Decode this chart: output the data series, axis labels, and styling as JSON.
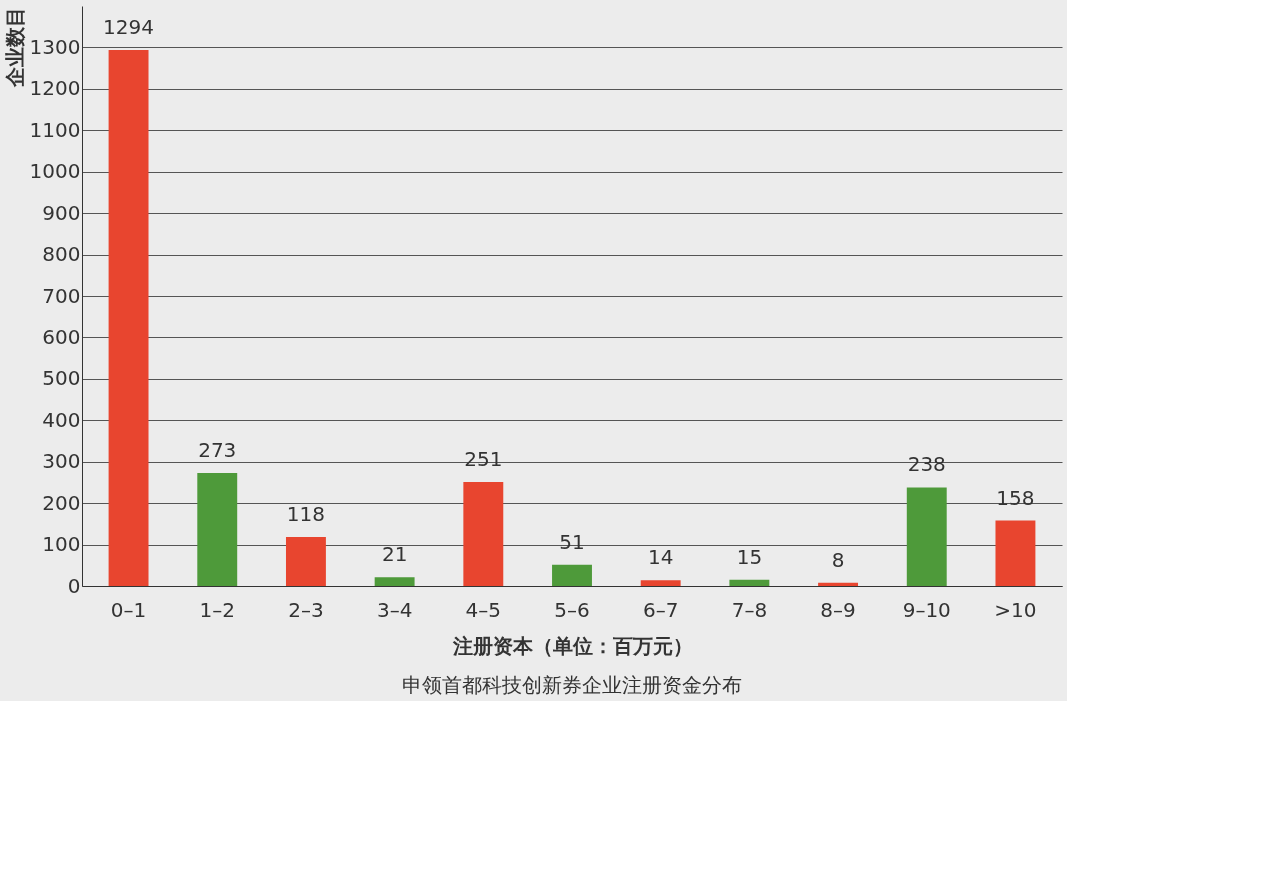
{
  "chart_data": {
    "type": "bar",
    "xlabel": "注册资本（单位：百万元）",
    "ylabel": "企业数目",
    "categories": [
      "0–1",
      "1–2",
      "2–3",
      "3–4",
      "4–5",
      "5–6",
      "6–7",
      "7–8",
      "8–9",
      "9–10",
      ">10"
    ],
    "values": [
      1294,
      273,
      118,
      21,
      251,
      51,
      14,
      15,
      8,
      238,
      158
    ],
    "colors": [
      "#e8452f",
      "#4e9a3a",
      "#e8452f",
      "#4e9a3a",
      "#e8452f",
      "#4e9a3a",
      "#e8452f",
      "#4e9a3a",
      "#e8452f",
      "#4e9a3a",
      "#e8452f"
    ],
    "ylim": [
      0,
      1400
    ],
    "yticks": [
      0,
      100,
      200,
      300,
      400,
      500,
      600,
      700,
      800,
      900,
      1000,
      1100,
      1200,
      1300
    ],
    "grid": "y",
    "data_labels": true,
    "annotations": [
      "申领首都科技创新券企业注册资金分布"
    ]
  }
}
